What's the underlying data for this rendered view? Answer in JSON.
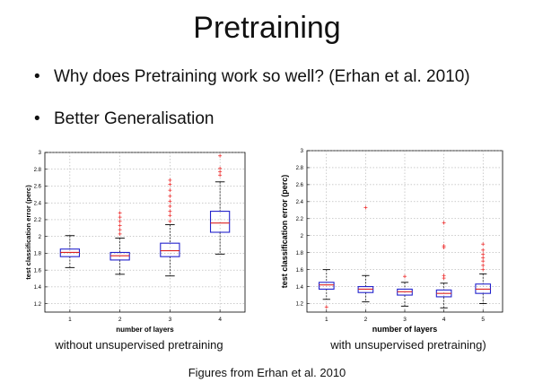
{
  "slide": {
    "title": "Pretraining",
    "bullets": [
      "Why does Pretraining work so well? (Erhan et al. 2010)",
      "Better Generalisation"
    ],
    "bullet_symbol": "•",
    "source": "Figures from Erhan et al. 2010"
  },
  "chart_data": [
    {
      "type": "box",
      "caption": "without unsupervised pretraining",
      "xlabel": "number of layers",
      "ylabel": "test classification error (perc)",
      "ylim": [
        1.1,
        3.0
      ],
      "yticks": [
        1.2,
        1.4,
        1.6,
        1.8,
        2,
        2.2,
        2.4,
        2.6,
        2.8,
        3
      ],
      "ytick_labels": [
        "1.2",
        "1.4",
        "1.6",
        "1.8",
        "2",
        "2.2",
        "2.4",
        "2.6",
        "2.8",
        "3"
      ],
      "categories": [
        "1",
        "2",
        "3",
        "4"
      ],
      "grid": true,
      "colors": {
        "box": "#2222cc",
        "median": "#dd2222",
        "outlier": "#ee3333",
        "whisker": "#000000"
      },
      "boxes": [
        {
          "whislo": 1.63,
          "q1": 1.76,
          "med": 1.81,
          "q3": 1.85,
          "whishi": 2.01,
          "fliers": []
        },
        {
          "whislo": 1.55,
          "q1": 1.72,
          "med": 1.77,
          "q3": 1.81,
          "whishi": 1.98,
          "fliers": [
            2.03,
            2.08,
            2.13,
            2.18,
            2.23,
            2.28
          ]
        },
        {
          "whislo": 1.53,
          "q1": 1.76,
          "med": 1.83,
          "q3": 1.92,
          "whishi": 2.14,
          "fliers": [
            2.18,
            2.25,
            2.3,
            2.36,
            2.42,
            2.48,
            2.55,
            2.62,
            2.67
          ]
        },
        {
          "whislo": 1.79,
          "q1": 2.05,
          "med": 2.16,
          "q3": 2.3,
          "whishi": 2.65,
          "fliers": [
            2.73,
            2.77,
            2.81,
            2.96
          ]
        }
      ]
    },
    {
      "type": "box",
      "caption": "with unsupervised pretraining)",
      "xlabel": "number of layers",
      "ylabel": "test classification error (perc)",
      "ylim": [
        1.1,
        3.0
      ],
      "yticks": [
        1.2,
        1.4,
        1.6,
        1.8,
        2,
        2.2,
        2.4,
        2.6,
        2.8,
        3
      ],
      "ytick_labels": [
        "1.2",
        "1.4",
        "1.6",
        "1.8",
        "2",
        "2.2",
        "2.4",
        "2.6",
        "2.8",
        "3"
      ],
      "categories": [
        "1",
        "2",
        "3",
        "4",
        "5"
      ],
      "grid": true,
      "colors": {
        "box": "#2222cc",
        "median": "#dd2222",
        "outlier": "#ee3333",
        "whisker": "#000000"
      },
      "boxes": [
        {
          "whislo": 1.25,
          "q1": 1.37,
          "med": 1.42,
          "q3": 1.45,
          "whishi": 1.6,
          "fliers": [
            1.16
          ]
        },
        {
          "whislo": 1.22,
          "q1": 1.33,
          "med": 1.37,
          "q3": 1.4,
          "whishi": 1.53,
          "fliers": [
            2.33
          ]
        },
        {
          "whislo": 1.17,
          "q1": 1.3,
          "med": 1.34,
          "q3": 1.37,
          "whishi": 1.45,
          "fliers": [
            1.52
          ]
        },
        {
          "whislo": 1.15,
          "q1": 1.28,
          "med": 1.32,
          "q3": 1.36,
          "whishi": 1.44,
          "fliers": [
            1.5,
            1.53,
            1.86,
            1.88,
            2.15
          ]
        },
        {
          "whislo": 1.2,
          "q1": 1.32,
          "med": 1.37,
          "q3": 1.43,
          "whishi": 1.55,
          "fliers": [
            1.6,
            1.65,
            1.7,
            1.74,
            1.78,
            1.83,
            1.9
          ]
        }
      ]
    }
  ]
}
